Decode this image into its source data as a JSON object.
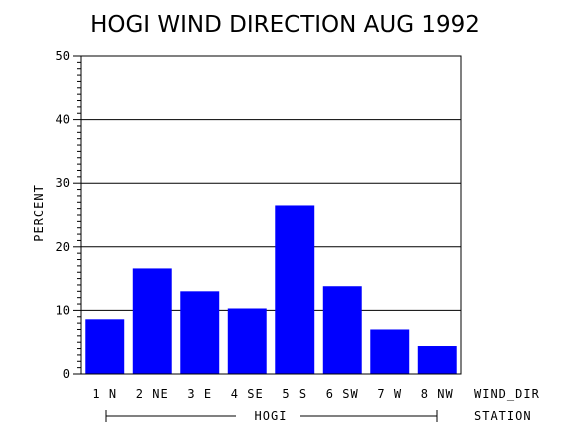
{
  "chart_data": {
    "type": "bar",
    "title": "HOGI WIND DIRECTION AUG 1992",
    "xlabel": "WIND_DIR",
    "ylabel": "PERCENT",
    "group_label": "HOGI",
    "group_axis_label": "STATION",
    "categories": [
      "1 N",
      "2 NE",
      "3 E",
      "4 SE",
      "5 S",
      "6 SW",
      "7 W",
      "8 NW"
    ],
    "values": [
      8.6,
      16.6,
      13.0,
      10.3,
      26.5,
      13.8,
      7.0,
      4.4
    ],
    "ylim": [
      0,
      50
    ],
    "yticks": [
      "0",
      "10",
      "20",
      "30",
      "40",
      "50"
    ],
    "grid": true,
    "bar_color": "#0000ff"
  }
}
